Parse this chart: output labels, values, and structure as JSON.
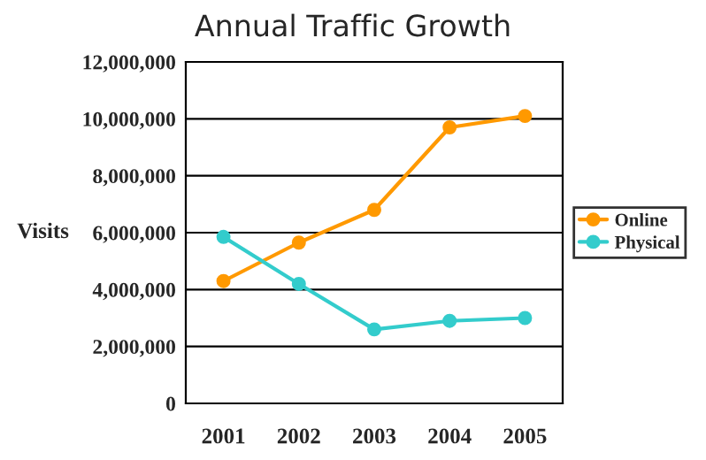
{
  "chart_data": {
    "type": "line",
    "title": "Annual Traffic Growth",
    "ylabel": "Visits",
    "categories": [
      "2001",
      "2002",
      "2003",
      "2004",
      "2005"
    ],
    "series": [
      {
        "name": "Online",
        "color": "#ff9900",
        "values": [
          4300000,
          5650000,
          6800000,
          9700000,
          10100000
        ]
      },
      {
        "name": "Physical",
        "color": "#33cccc",
        "values": [
          5850000,
          4200000,
          2600000,
          2900000,
          3000000
        ]
      }
    ],
    "ylim": [
      0,
      12000000
    ],
    "yticks": [
      {
        "value": 0,
        "label": "0"
      },
      {
        "value": 2000000,
        "label": "2,000,000"
      },
      {
        "value": 4000000,
        "label": "4,000,000"
      },
      {
        "value": 6000000,
        "label": "6,000,000"
      },
      {
        "value": 8000000,
        "label": "8,000,000"
      },
      {
        "value": 10000000,
        "label": "10,000,000"
      },
      {
        "value": 12000000,
        "label": "12,000,000"
      }
    ],
    "grid": "y",
    "legend": "right",
    "marker": "circle",
    "line_style": "solid"
  }
}
